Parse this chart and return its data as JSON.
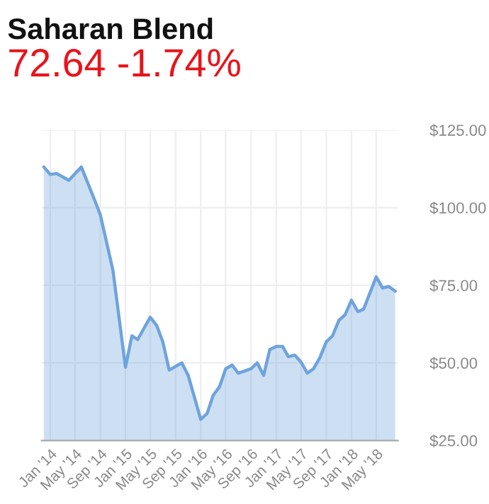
{
  "chart_data": {
    "type": "area",
    "title": "Saharan Blend",
    "subtitle": "72.64 -1.74%",
    "x": [
      "2013-12",
      "2014-01",
      "2014-02",
      "2014-04",
      "2014-06",
      "2014-08",
      "2014-09",
      "2014-11",
      "2015-01",
      "2015-02",
      "2015-03",
      "2015-05",
      "2015-06",
      "2015-07",
      "2015-08",
      "2015-10",
      "2015-11",
      "2016-01",
      "2016-02",
      "2016-03",
      "2016-04",
      "2016-05",
      "2016-06",
      "2016-07",
      "2016-08",
      "2016-09",
      "2016-10",
      "2016-11",
      "2016-12",
      "2017-01",
      "2017-02",
      "2017-03",
      "2017-04",
      "2017-05",
      "2017-06",
      "2017-07",
      "2017-08",
      "2017-09",
      "2017-10",
      "2017-11",
      "2017-12",
      "2018-01",
      "2018-02",
      "2018-03",
      "2018-05",
      "2018-06",
      "2018-07",
      "2018-08"
    ],
    "series": [
      {
        "color": "#6fa3dc",
        "values": [
          113.1,
          110.7,
          111.0,
          108.8,
          113.1,
          103.0,
          97.7,
          79.9,
          48.6,
          58.7,
          57.5,
          64.7,
          62.1,
          56.8,
          47.7,
          50.0,
          46.0,
          31.8,
          33.7,
          39.5,
          42.3,
          48.1,
          49.3,
          46.7,
          47.4,
          48.1,
          50.0,
          46.0,
          54.3,
          55.3,
          55.3,
          52.0,
          52.5,
          50.3,
          46.7,
          48.1,
          51.7,
          56.8,
          58.7,
          63.7,
          65.5,
          70.2,
          66.5,
          67.3,
          77.7,
          74.1,
          74.6,
          73.1
        ]
      }
    ],
    "xlim": [
      "2013-11-20",
      "2018-08-15"
    ],
    "xticks": [
      {
        "value": "2014-01-01",
        "label": "Jan '14"
      },
      {
        "value": "2014-05-01",
        "label": "May '14"
      },
      {
        "value": "2014-09-01",
        "label": "Sep '14"
      },
      {
        "value": "2015-01-01",
        "label": "Jan '15"
      },
      {
        "value": "2015-05-01",
        "label": "May '15"
      },
      {
        "value": "2015-09-01",
        "label": "Sep '15"
      },
      {
        "value": "2016-01-01",
        "label": "Jan '16"
      },
      {
        "value": "2016-05-01",
        "label": "May '16"
      },
      {
        "value": "2016-09-01",
        "label": "Sep '16"
      },
      {
        "value": "2017-01-01",
        "label": "Jan '17"
      },
      {
        "value": "2017-05-01",
        "label": "May '17"
      },
      {
        "value": "2017-09-01",
        "label": "Sep '17"
      },
      {
        "value": "2018-01-01",
        "label": "Jan '18"
      },
      {
        "value": "2018-05-01",
        "label": "May '18"
      }
    ],
    "ylim": [
      25,
      125
    ],
    "yticks": [
      {
        "value": 25,
        "label": "$25.00"
      },
      {
        "value": 50,
        "label": "$50.00"
      },
      {
        "value": 75,
        "label": "$75.00"
      },
      {
        "value": 100,
        "label": "$100.00"
      },
      {
        "value": 125,
        "label": "$125.00"
      }
    ],
    "grid": true,
    "legend": false
  }
}
